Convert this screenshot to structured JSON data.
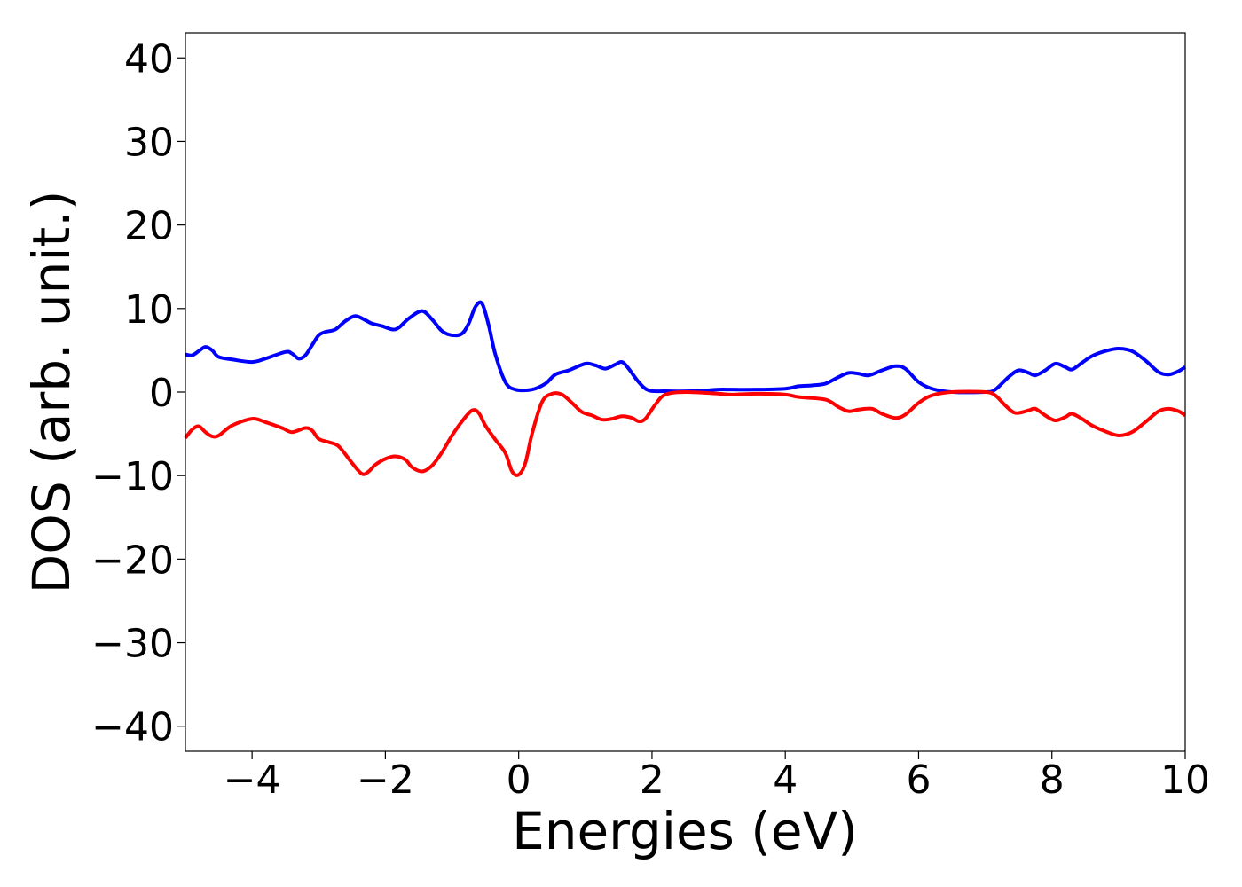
{
  "chart_data": {
    "type": "line",
    "xlabel": "Energies (eV)",
    "ylabel": "DOS (arb. unit.)",
    "xlim": [
      -5,
      10
    ],
    "ylim": [
      -43,
      43
    ],
    "xticks": [
      -4,
      -2,
      0,
      2,
      4,
      6,
      8,
      10
    ],
    "yticks": [
      -40,
      -30,
      -20,
      -10,
      0,
      10,
      20,
      30,
      40
    ],
    "xtick_labels": [
      "−4",
      "−2",
      "0",
      "2",
      "4",
      "6",
      "8",
      "10"
    ],
    "ytick_labels": [
      "−40",
      "−30",
      "−20",
      "−10",
      "0",
      "10",
      "20",
      "30",
      "40"
    ],
    "grid": false,
    "legend": "none",
    "series": [
      {
        "color": "#0000ff",
        "points": [
          [
            -5.0,
            4.5
          ],
          [
            -4.9,
            4.4
          ],
          [
            -4.8,
            4.9
          ],
          [
            -4.7,
            5.4
          ],
          [
            -4.6,
            5.0
          ],
          [
            -4.5,
            4.2
          ],
          [
            -4.3,
            3.9
          ],
          [
            -4.0,
            3.6
          ],
          [
            -3.8,
            4.0
          ],
          [
            -3.5,
            4.8
          ],
          [
            -3.4,
            4.6
          ],
          [
            -3.3,
            4.0
          ],
          [
            -3.2,
            4.4
          ],
          [
            -3.1,
            5.6
          ],
          [
            -3.0,
            6.8
          ],
          [
            -2.9,
            7.2
          ],
          [
            -2.75,
            7.5
          ],
          [
            -2.6,
            8.5
          ],
          [
            -2.45,
            9.1
          ],
          [
            -2.3,
            8.6
          ],
          [
            -2.2,
            8.2
          ],
          [
            -2.05,
            7.9
          ],
          [
            -1.9,
            7.5
          ],
          [
            -1.8,
            7.7
          ],
          [
            -1.65,
            8.8
          ],
          [
            -1.45,
            9.7
          ],
          [
            -1.3,
            8.7
          ],
          [
            -1.15,
            7.3
          ],
          [
            -1.0,
            6.8
          ],
          [
            -0.85,
            7.0
          ],
          [
            -0.75,
            8.2
          ],
          [
            -0.65,
            10.2
          ],
          [
            -0.55,
            10.6
          ],
          [
            -0.45,
            8.0
          ],
          [
            -0.35,
            4.5
          ],
          [
            -0.2,
            1.2
          ],
          [
            -0.05,
            0.3
          ],
          [
            0.2,
            0.3
          ],
          [
            0.4,
            1.0
          ],
          [
            0.55,
            2.1
          ],
          [
            0.75,
            2.6
          ],
          [
            1.0,
            3.4
          ],
          [
            1.15,
            3.2
          ],
          [
            1.3,
            2.8
          ],
          [
            1.45,
            3.3
          ],
          [
            1.55,
            3.6
          ],
          [
            1.65,
            2.8
          ],
          [
            1.8,
            1.2
          ],
          [
            1.95,
            0.2
          ],
          [
            2.2,
            0.1
          ],
          [
            2.6,
            0.1
          ],
          [
            3.0,
            0.3
          ],
          [
            3.2,
            0.3
          ],
          [
            3.6,
            0.3
          ],
          [
            4.0,
            0.4
          ],
          [
            4.2,
            0.7
          ],
          [
            4.4,
            0.8
          ],
          [
            4.6,
            1.0
          ],
          [
            4.8,
            1.8
          ],
          [
            4.95,
            2.3
          ],
          [
            5.1,
            2.2
          ],
          [
            5.25,
            2.0
          ],
          [
            5.45,
            2.6
          ],
          [
            5.65,
            3.1
          ],
          [
            5.8,
            2.8
          ],
          [
            6.0,
            1.2
          ],
          [
            6.2,
            0.4
          ],
          [
            6.5,
            0.0
          ],
          [
            7.0,
            0.0
          ],
          [
            7.15,
            0.3
          ],
          [
            7.35,
            1.8
          ],
          [
            7.5,
            2.6
          ],
          [
            7.65,
            2.3
          ],
          [
            7.75,
            2.0
          ],
          [
            7.9,
            2.6
          ],
          [
            8.05,
            3.4
          ],
          [
            8.2,
            3.0
          ],
          [
            8.3,
            2.7
          ],
          [
            8.45,
            3.5
          ],
          [
            8.6,
            4.3
          ],
          [
            8.8,
            4.9
          ],
          [
            9.0,
            5.2
          ],
          [
            9.2,
            4.9
          ],
          [
            9.4,
            3.8
          ],
          [
            9.6,
            2.4
          ],
          [
            9.75,
            2.1
          ],
          [
            9.9,
            2.5
          ],
          [
            10.0,
            3.0
          ]
        ]
      },
      {
        "color": "#ff0000",
        "points": [
          [
            -5.0,
            -5.5
          ],
          [
            -4.9,
            -4.5
          ],
          [
            -4.8,
            -4.1
          ],
          [
            -4.7,
            -4.8
          ],
          [
            -4.6,
            -5.3
          ],
          [
            -4.5,
            -5.2
          ],
          [
            -4.3,
            -4.0
          ],
          [
            -4.0,
            -3.2
          ],
          [
            -3.8,
            -3.6
          ],
          [
            -3.55,
            -4.3
          ],
          [
            -3.4,
            -4.8
          ],
          [
            -3.2,
            -4.3
          ],
          [
            -3.1,
            -4.6
          ],
          [
            -3.0,
            -5.6
          ],
          [
            -2.85,
            -6.0
          ],
          [
            -2.7,
            -6.5
          ],
          [
            -2.5,
            -8.5
          ],
          [
            -2.35,
            -9.8
          ],
          [
            -2.25,
            -9.5
          ],
          [
            -2.15,
            -8.7
          ],
          [
            -2.0,
            -8.0
          ],
          [
            -1.85,
            -7.7
          ],
          [
            -1.7,
            -8.1
          ],
          [
            -1.6,
            -9.0
          ],
          [
            -1.45,
            -9.5
          ],
          [
            -1.3,
            -8.8
          ],
          [
            -1.15,
            -7.2
          ],
          [
            -1.0,
            -5.2
          ],
          [
            -0.85,
            -3.5
          ],
          [
            -0.7,
            -2.2
          ],
          [
            -0.6,
            -2.5
          ],
          [
            -0.5,
            -4.0
          ],
          [
            -0.35,
            -5.7
          ],
          [
            -0.2,
            -7.3
          ],
          [
            -0.1,
            -9.5
          ],
          [
            0.0,
            -9.9
          ],
          [
            0.1,
            -8.5
          ],
          [
            0.2,
            -5.0
          ],
          [
            0.35,
            -1.2
          ],
          [
            0.5,
            -0.2
          ],
          [
            0.65,
            -0.3
          ],
          [
            0.8,
            -1.3
          ],
          [
            0.95,
            -2.4
          ],
          [
            1.1,
            -2.8
          ],
          [
            1.25,
            -3.3
          ],
          [
            1.4,
            -3.2
          ],
          [
            1.55,
            -2.9
          ],
          [
            1.7,
            -3.1
          ],
          [
            1.8,
            -3.5
          ],
          [
            1.9,
            -3.2
          ],
          [
            2.05,
            -1.5
          ],
          [
            2.2,
            -0.3
          ],
          [
            2.5,
            0.0
          ],
          [
            3.0,
            -0.2
          ],
          [
            3.2,
            -0.3
          ],
          [
            3.6,
            -0.2
          ],
          [
            4.0,
            -0.3
          ],
          [
            4.2,
            -0.6
          ],
          [
            4.6,
            -0.9
          ],
          [
            4.8,
            -1.8
          ],
          [
            4.95,
            -2.3
          ],
          [
            5.1,
            -2.1
          ],
          [
            5.3,
            -2.0
          ],
          [
            5.45,
            -2.6
          ],
          [
            5.65,
            -3.1
          ],
          [
            5.8,
            -2.7
          ],
          [
            6.0,
            -1.3
          ],
          [
            6.2,
            -0.4
          ],
          [
            6.5,
            0.0
          ],
          [
            7.0,
            0.0
          ],
          [
            7.15,
            -0.4
          ],
          [
            7.3,
            -1.6
          ],
          [
            7.45,
            -2.5
          ],
          [
            7.65,
            -2.2
          ],
          [
            7.75,
            -2.0
          ],
          [
            7.9,
            -2.8
          ],
          [
            8.05,
            -3.4
          ],
          [
            8.2,
            -3.0
          ],
          [
            8.3,
            -2.6
          ],
          [
            8.45,
            -3.2
          ],
          [
            8.6,
            -4.0
          ],
          [
            8.8,
            -4.7
          ],
          [
            9.0,
            -5.2
          ],
          [
            9.2,
            -4.8
          ],
          [
            9.4,
            -3.6
          ],
          [
            9.6,
            -2.3
          ],
          [
            9.75,
            -2.0
          ],
          [
            9.9,
            -2.3
          ],
          [
            10.0,
            -2.8
          ]
        ]
      }
    ]
  }
}
